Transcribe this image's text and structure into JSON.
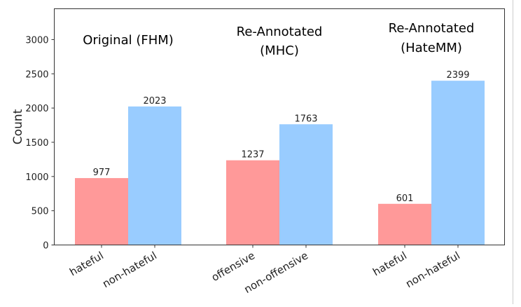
{
  "chart_data": {
    "type": "bar",
    "ylabel": "Count",
    "xlabel": "",
    "ylim": [
      0,
      3450
    ],
    "yticks": [
      0,
      500,
      1000,
      1500,
      2000,
      2500,
      3000
    ],
    "grid": false,
    "colors": {
      "negative_class": "#ff9999",
      "positive_class": "#99ccff"
    },
    "groups": [
      {
        "title": [
          "Original (FHM)"
        ],
        "bars": [
          {
            "label": "hateful",
            "value": 977,
            "color": "#ff9999"
          },
          {
            "label": "non-hateful",
            "value": 2023,
            "color": "#99ccff"
          }
        ]
      },
      {
        "title": [
          "Re-Annotated",
          "(MHC)"
        ],
        "bars": [
          {
            "label": "offensive",
            "value": 1237,
            "color": "#ff9999"
          },
          {
            "label": "non-offensive",
            "value": 1763,
            "color": "#99ccff"
          }
        ]
      },
      {
        "title": [
          "Re-Annotated",
          "(HateMM)"
        ],
        "bars": [
          {
            "label": "hateful",
            "value": 601,
            "color": "#ff9999"
          },
          {
            "label": "non-hateful",
            "value": 2399,
            "color": "#99ccff"
          }
        ]
      }
    ]
  }
}
